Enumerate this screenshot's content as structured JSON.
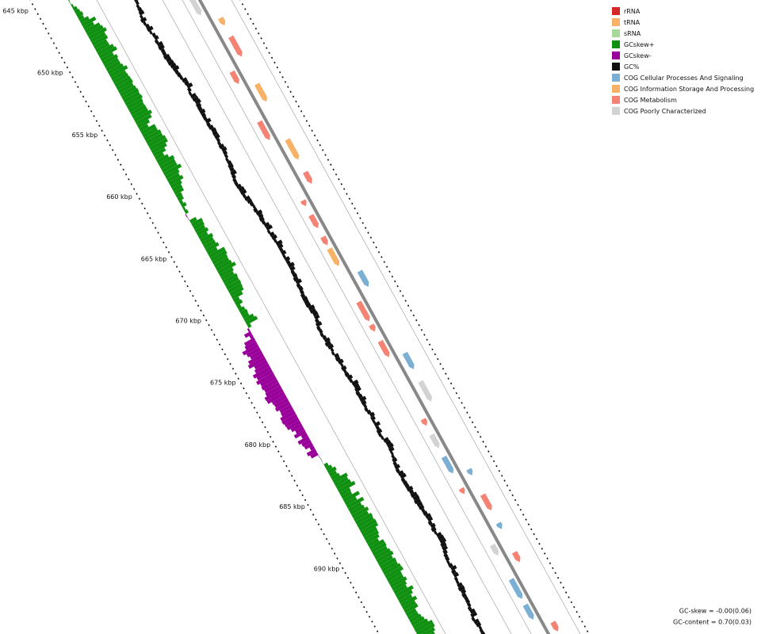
{
  "legend": [
    {
      "label": "rRNA",
      "color": "#d62728"
    },
    {
      "label": "tRNA",
      "color": "#f7b267"
    },
    {
      "label": "sRNA",
      "color": "#a6d99a"
    },
    {
      "label": "GCskew+",
      "color": "#109010"
    },
    {
      "label": "GCskew-",
      "color": "#990099"
    },
    {
      "label": "GC%",
      "color": "#111111"
    },
    {
      "label": "COG Cellular Processes And Signaling",
      "color": "#7bafd4"
    },
    {
      "label": "COG Information Storage And Processing",
      "color": "#f7b267"
    },
    {
      "label": "COG Metabolism",
      "color": "#f58374"
    },
    {
      "label": "COG Poorly Characterized",
      "color": "#d3d3d3"
    }
  ],
  "axis_labels": [
    "645 kbp",
    "650 kbp",
    "655 kbp",
    "660 kbp",
    "665 kbp",
    "670 kbp",
    "675 kbp",
    "680 kbp",
    "685 kbp",
    "690 kbp"
  ],
  "stats": [
    "GC-skew = -0.00(0.06)",
    "GC-content = 0.70(0.03)"
  ]
}
